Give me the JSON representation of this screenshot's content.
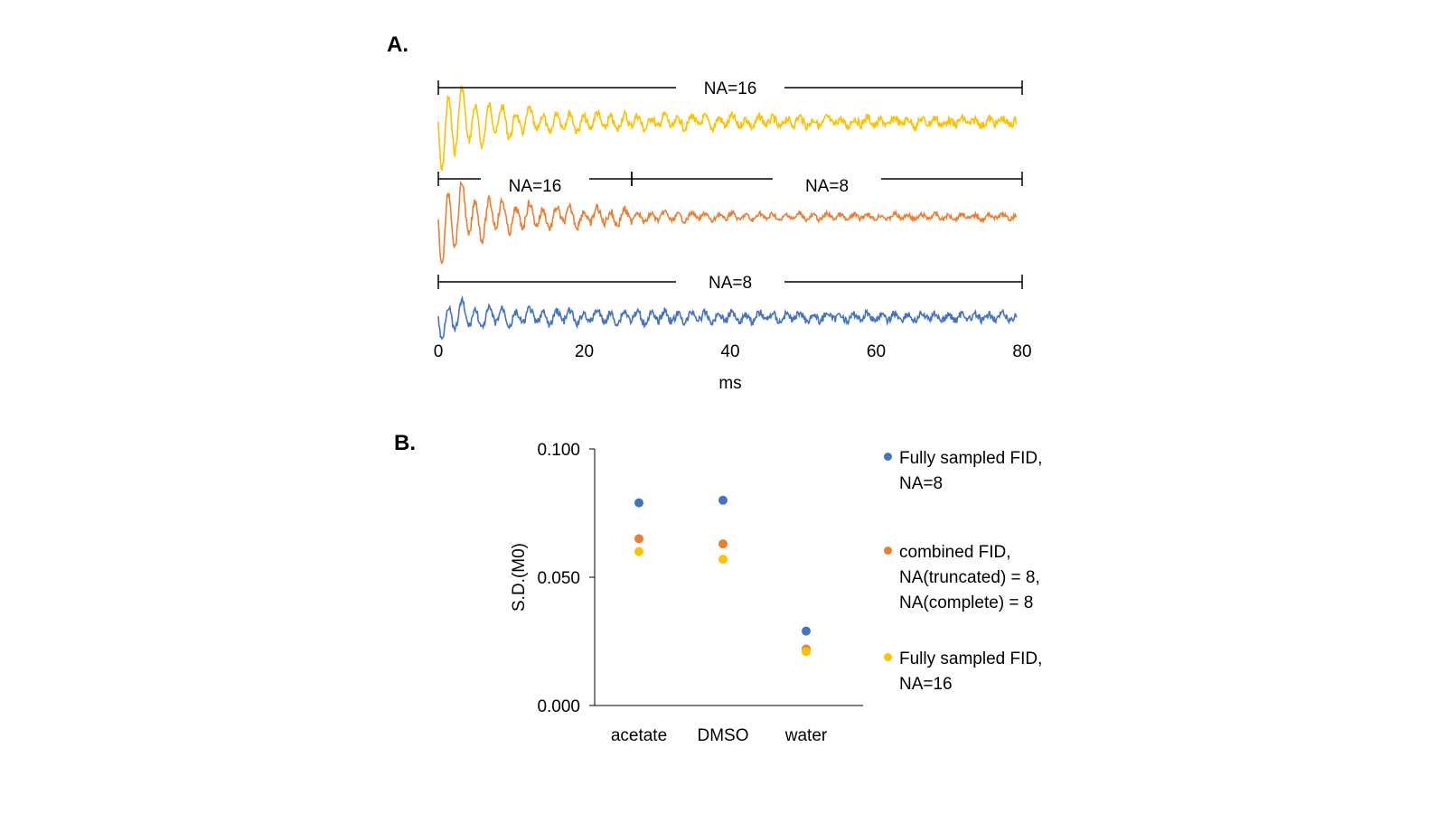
{
  "figure": {
    "label_a": "A.",
    "label_b": "B."
  },
  "colors": {
    "blue": "#4472C4",
    "orange": "#ED7D31",
    "yellow": "#FFC000"
  },
  "chart_data": [
    {
      "type": "line",
      "xlabel": "ms",
      "xlim": [
        0,
        80
      ],
      "xticks": [
        0,
        20,
        40,
        60,
        80
      ],
      "series": [
        {
          "color_key": "yellow",
          "decay": "strong",
          "segments": [
            {
              "label": "NA=16",
              "from": 0,
              "to": 80
            }
          ]
        },
        {
          "color_key": "orange",
          "decay": "strong",
          "segments": [
            {
              "label": "NA=16",
              "from": 0,
              "to": 26.5
            },
            {
              "label": "NA=8",
              "from": 26.5,
              "to": 80
            }
          ]
        },
        {
          "color_key": "blue",
          "decay": "weak",
          "segments": [
            {
              "label": "NA=8",
              "from": 0,
              "to": 80
            }
          ]
        }
      ]
    },
    {
      "type": "scatter",
      "categories": [
        "acetate",
        "DMSO",
        "water"
      ],
      "ylabel": "S.D.(M0)",
      "ylim": [
        0,
        0.1
      ],
      "yticks": [
        "0.000",
        "0.050",
        "0.100"
      ],
      "series": [
        {
          "name": "Fully sampled FID,\nNA=8",
          "color_key": "blue",
          "values": [
            0.079,
            0.08,
            0.029
          ]
        },
        {
          "name": "combined FID,\nNA(truncated) = 8,\nNA(complete) = 8",
          "color_key": "orange",
          "values": [
            0.065,
            0.063,
            0.022
          ]
        },
        {
          "name": "Fully sampled FID,\nNA=16",
          "color_key": "yellow",
          "values": [
            0.06,
            0.057,
            0.021
          ]
        }
      ]
    }
  ]
}
